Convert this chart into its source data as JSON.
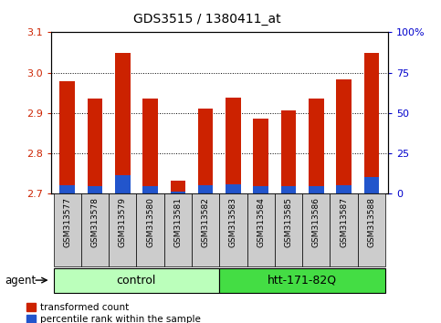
{
  "title": "GDS3515 / 1380411_at",
  "samples": [
    "GSM313577",
    "GSM313578",
    "GSM313579",
    "GSM313580",
    "GSM313581",
    "GSM313582",
    "GSM313583",
    "GSM313584",
    "GSM313585",
    "GSM313586",
    "GSM313587",
    "GSM313588"
  ],
  "red_tops": [
    2.978,
    2.935,
    3.048,
    2.937,
    2.732,
    2.912,
    2.938,
    2.887,
    2.906,
    2.937,
    2.984,
    3.048
  ],
  "blue_tops": [
    2.722,
    2.72,
    2.746,
    2.72,
    2.705,
    2.722,
    2.724,
    2.718,
    2.718,
    2.72,
    2.722,
    2.742
  ],
  "base": 2.7,
  "ylim": [
    2.7,
    3.1
  ],
  "yticks": [
    2.7,
    2.8,
    2.9,
    3.0,
    3.1
  ],
  "y2ticks_vals": [
    2.7,
    2.8,
    2.9,
    3.0,
    3.1
  ],
  "y2labels": [
    "0",
    "25",
    "50",
    "75",
    "100%"
  ],
  "red_color": "#cc2200",
  "blue_color": "#2255cc",
  "bar_width": 0.55,
  "groups": [
    {
      "label": "control",
      "start": 0,
      "end": 5,
      "color": "#bbffbb"
    },
    {
      "label": "htt-171-82Q",
      "start": 6,
      "end": 11,
      "color": "#44dd44"
    }
  ],
  "agent_label": "agent",
  "legend_red": "transformed count",
  "legend_blue": "percentile rank within the sample",
  "tick_color_left": "#cc2200",
  "tick_color_right": "#0000cc",
  "label_area_color": "#cccccc"
}
